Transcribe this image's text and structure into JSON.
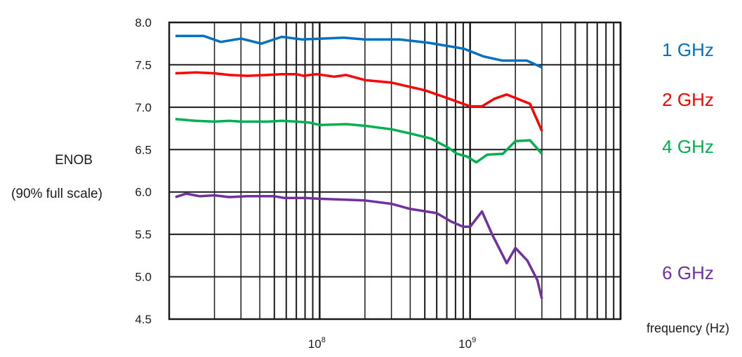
{
  "chart_data": {
    "type": "line",
    "title": "",
    "xlabel": "frequency (Hz)",
    "ylabel": "ENOB",
    "ylabel_sub": "(90% full scale)",
    "xscale": "log",
    "xlim": [
      10000000,
      10000000000
    ],
    "ylim": [
      4.5,
      8.0
    ],
    "yticks": [
      "8.0",
      "7.5",
      "7.0",
      "6.5",
      "6.0",
      "5.5",
      "5.0",
      "4.5"
    ],
    "xticks": [
      {
        "base": "10",
        "exp": "8",
        "value": 100000000
      },
      {
        "base": "10",
        "exp": "9",
        "value": 1000000000
      }
    ],
    "grid": true,
    "legend_position": "right",
    "series": [
      {
        "name": "1 GHz",
        "color": "#0070c0",
        "points": [
          [
            11000000,
            7.84
          ],
          [
            17000000,
            7.84
          ],
          [
            22000000,
            7.77
          ],
          [
            30000000,
            7.81
          ],
          [
            41000000,
            7.75
          ],
          [
            56000000,
            7.83
          ],
          [
            76000000,
            7.8
          ],
          [
            145000000,
            7.82
          ],
          [
            200000000,
            7.8
          ],
          [
            340000000,
            7.8
          ],
          [
            530000000,
            7.76
          ],
          [
            910000000,
            7.69
          ],
          [
            1220000000,
            7.6
          ],
          [
            1640000000,
            7.55
          ],
          [
            2380000000,
            7.55
          ],
          [
            3000000000,
            7.47
          ]
        ]
      },
      {
        "name": "2 GHz",
        "color": "#ff0000",
        "points": [
          [
            11000000,
            7.4
          ],
          [
            15000000,
            7.41
          ],
          [
            20000000,
            7.4
          ],
          [
            25000000,
            7.38
          ],
          [
            33000000,
            7.37
          ],
          [
            45000000,
            7.38
          ],
          [
            56000000,
            7.39
          ],
          [
            70000000,
            7.39
          ],
          [
            78000000,
            7.37
          ],
          [
            95000000,
            7.39
          ],
          [
            125000000,
            7.36
          ],
          [
            150000000,
            7.38
          ],
          [
            200000000,
            7.32
          ],
          [
            300000000,
            7.29
          ],
          [
            400000000,
            7.24
          ],
          [
            500000000,
            7.2
          ],
          [
            700000000,
            7.11
          ],
          [
            1000000000,
            7.01
          ],
          [
            1200000000,
            7.01
          ],
          [
            1450000000,
            7.1
          ],
          [
            1750000000,
            7.15
          ],
          [
            2500000000,
            7.04
          ],
          [
            3000000000,
            6.72
          ]
        ]
      },
      {
        "name": "4 GHz",
        "color": "#00b050",
        "points": [
          [
            11000000,
            6.86
          ],
          [
            15000000,
            6.84
          ],
          [
            20000000,
            6.83
          ],
          [
            25000000,
            6.84
          ],
          [
            30000000,
            6.83
          ],
          [
            45000000,
            6.83
          ],
          [
            56000000,
            6.84
          ],
          [
            70000000,
            6.83
          ],
          [
            85000000,
            6.82
          ],
          [
            100000000,
            6.79
          ],
          [
            150000000,
            6.8
          ],
          [
            200000000,
            6.78
          ],
          [
            300000000,
            6.74
          ],
          [
            400000000,
            6.69
          ],
          [
            550000000,
            6.63
          ],
          [
            720000000,
            6.52
          ],
          [
            820000000,
            6.45
          ],
          [
            950000000,
            6.42
          ],
          [
            1100000000,
            6.35
          ],
          [
            1300000000,
            6.44
          ],
          [
            1650000000,
            6.45
          ],
          [
            2000000000,
            6.6
          ],
          [
            2500000000,
            6.61
          ],
          [
            3000000000,
            6.45
          ]
        ]
      },
      {
        "name": "6 GHz",
        "color": "#7030a0",
        "points": [
          [
            11000000,
            5.94
          ],
          [
            13000000,
            5.98
          ],
          [
            16000000,
            5.95
          ],
          [
            20000000,
            5.96
          ],
          [
            25000000,
            5.94
          ],
          [
            33000000,
            5.95
          ],
          [
            50000000,
            5.95
          ],
          [
            58000000,
            5.93
          ],
          [
            80000000,
            5.93
          ],
          [
            100000000,
            5.92
          ],
          [
            200000000,
            5.9
          ],
          [
            300000000,
            5.86
          ],
          [
            400000000,
            5.8
          ],
          [
            600000000,
            5.75
          ],
          [
            750000000,
            5.65
          ],
          [
            900000000,
            5.59
          ],
          [
            1000000000,
            5.59
          ],
          [
            1200000000,
            5.77
          ],
          [
            1400000000,
            5.5
          ],
          [
            1750000000,
            5.16
          ],
          [
            2000000000,
            5.34
          ],
          [
            2400000000,
            5.19
          ],
          [
            2800000000,
            4.96
          ],
          [
            3000000000,
            4.74
          ]
        ]
      }
    ]
  }
}
